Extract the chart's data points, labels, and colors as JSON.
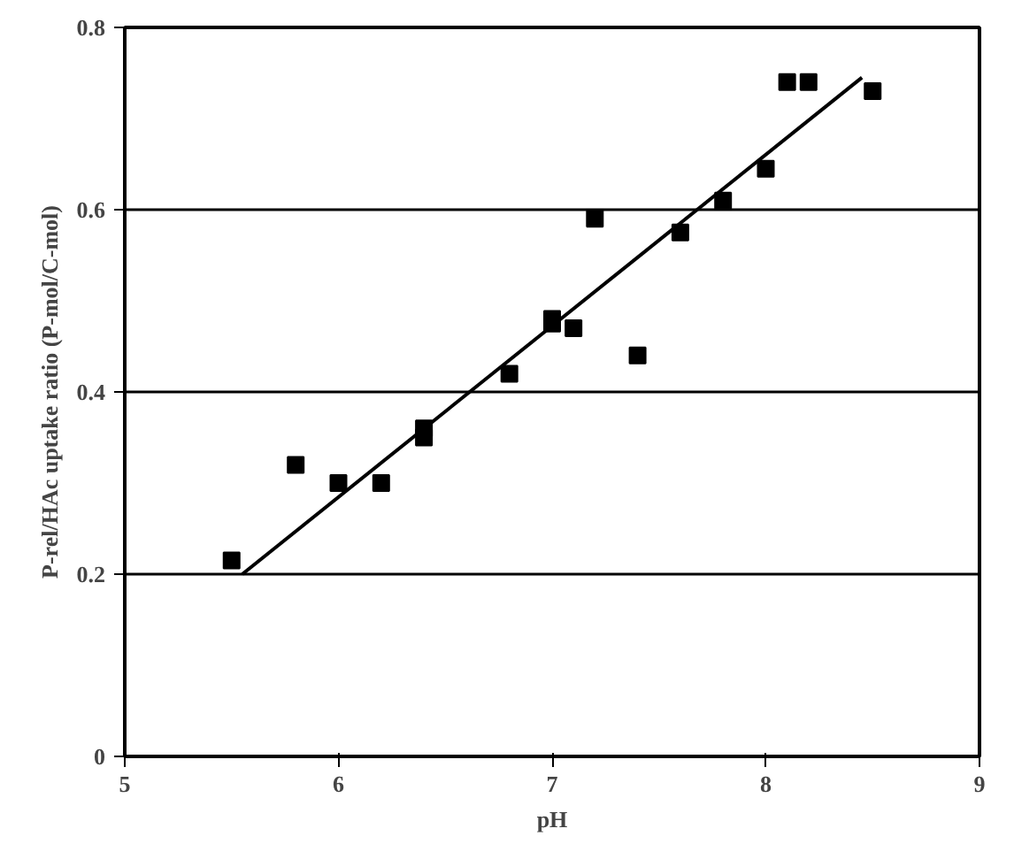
{
  "chart_data": {
    "type": "scatter",
    "xlabel": "pH",
    "ylabel": "P-rel/HAc uptake ratio (P-mol/C-mol)",
    "xlim": [
      5,
      9
    ],
    "xticks": [
      5,
      6,
      7,
      8,
      9
    ],
    "ylim": [
      0,
      0.8
    ],
    "yticks": [
      0,
      0.2,
      0.4,
      0.6,
      0.8
    ],
    "grid": "y",
    "series": [
      {
        "marker": "square",
        "color": "#000000",
        "x": [
          5.5,
          5.8,
          6.0,
          6.2,
          6.4,
          6.4,
          6.8,
          7.0,
          7.0,
          7.1,
          7.2,
          7.4,
          7.6,
          7.8,
          8.0,
          8.1,
          8.2,
          8.5
        ],
        "values": [
          0.215,
          0.32,
          0.3,
          0.3,
          0.36,
          0.35,
          0.42,
          0.48,
          0.475,
          0.47,
          0.59,
          0.44,
          0.575,
          0.61,
          0.645,
          0.74,
          0.74,
          0.73
        ]
      },
      {
        "type": "line",
        "color": "#000000",
        "x": [
          5.55,
          8.45
        ],
        "values": [
          0.2,
          0.745
        ]
      }
    ]
  }
}
